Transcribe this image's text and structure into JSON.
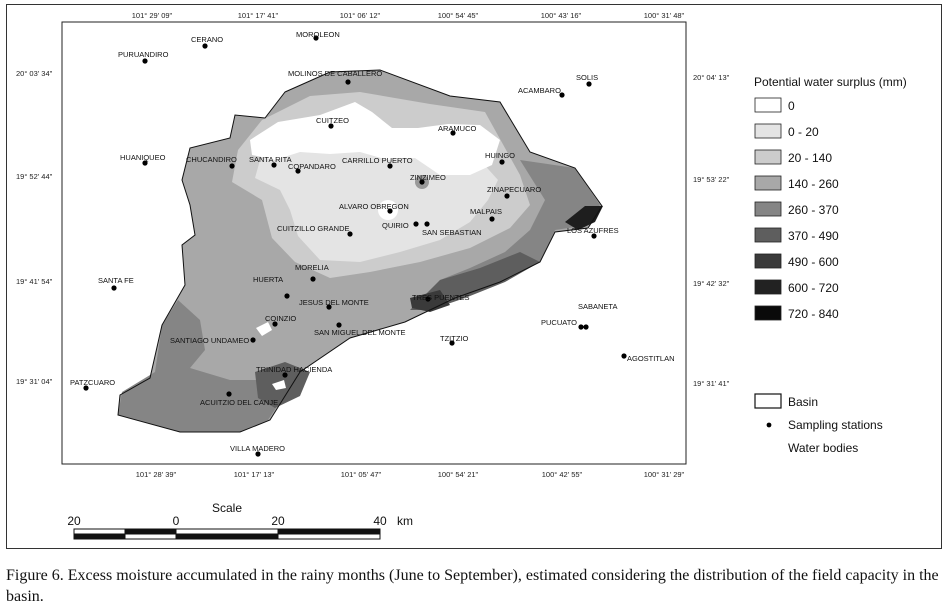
{
  "coordinates": {
    "top": [
      "101° 29' 09\"",
      "101° 17' 41\"",
      "101° 06' 12\"",
      "100° 54' 45\"",
      "100° 43' 16\"",
      "100° 31' 48\""
    ],
    "bottom": [
      "101° 28' 39\"",
      "101° 17' 13\"",
      "101° 05' 47\"",
      "100° 54' 21\"",
      "100° 42' 55\"",
      "100° 31' 29\""
    ],
    "left": [
      "20° 03' 34\"",
      "19° 52' 44\"",
      "19° 41' 54\"",
      "19° 31' 04\""
    ],
    "right": [
      "20° 04' 13\"",
      "19° 53' 22\"",
      "19° 42' 32\"",
      "19° 31' 41\""
    ]
  },
  "places": [
    {
      "name": "CERANO"
    },
    {
      "name": "MOROLEON"
    },
    {
      "name": "PURUANDIRO"
    },
    {
      "name": "MOLINOS DE CABALLERO"
    },
    {
      "name": "ACAMBARO"
    },
    {
      "name": "SOLIS"
    },
    {
      "name": "CUITZEO"
    },
    {
      "name": "ARAMUCO"
    },
    {
      "name": "HUANIQUEO"
    },
    {
      "name": "CHUCANDIRO"
    },
    {
      "name": "SANTA RITA"
    },
    {
      "name": "COPANDARO"
    },
    {
      "name": "CARRILLO PUERTO"
    },
    {
      "name": "HUINGO"
    },
    {
      "name": "ZINZIMEO"
    },
    {
      "name": "ZINAPECUARO"
    },
    {
      "name": "ALVARO OBREGON"
    },
    {
      "name": "MALPAIS"
    },
    {
      "name": "CUITZILLO GRANDE"
    },
    {
      "name": "QUIRIO"
    },
    {
      "name": "SAN SEBASTIAN"
    },
    {
      "name": "LOS AZUFRES"
    },
    {
      "name": "MORELIA"
    },
    {
      "name": "SANTA FE"
    },
    {
      "name": "HUERTA"
    },
    {
      "name": "JESUS DEL MONTE"
    },
    {
      "name": "TRES PUENTES"
    },
    {
      "name": "SABANETA"
    },
    {
      "name": "COINZIO"
    },
    {
      "name": "SAN MIGUEL DEL MONTE"
    },
    {
      "name": "PUCUATO"
    },
    {
      "name": "SANTIAGO UNDAMEO"
    },
    {
      "name": "TZITZIO"
    },
    {
      "name": "AGOSTITLAN"
    },
    {
      "name": "TRINIDAD HACIENDA"
    },
    {
      "name": "PATZCUARO"
    },
    {
      "name": "ACUITZIO DEL CANJE"
    },
    {
      "name": "VILLA MADERO"
    }
  ],
  "legend": {
    "title": "Potential water surplus (mm)",
    "classes": [
      {
        "label": "0",
        "color": "#ffffff"
      },
      {
        "label": "0 - 20",
        "color": "#e4e4e4"
      },
      {
        "label": "20 - 140",
        "color": "#cccccc"
      },
      {
        "label": "140 - 260",
        "color": "#a8a8a8"
      },
      {
        "label": "260 - 370",
        "color": "#858585"
      },
      {
        "label": "370 - 490",
        "color": "#5e5e5e"
      },
      {
        "label": "490 - 600",
        "color": "#3a3a3a"
      },
      {
        "label": "600 - 720",
        "color": "#222222"
      },
      {
        "label": "720 - 840",
        "color": "#0a0a0a"
      }
    ],
    "basin": "Basin",
    "stations": "Sampling stations",
    "water_bodies": "Water bodies"
  },
  "scale": {
    "title": "Scale",
    "ticks": [
      "20",
      "0",
      "20",
      "40"
    ],
    "unit": "km"
  },
  "caption": "Figure 6. Excess moisture accumulated in the rainy months (June to September), estimated considering the distribution of the field capacity in the basin."
}
